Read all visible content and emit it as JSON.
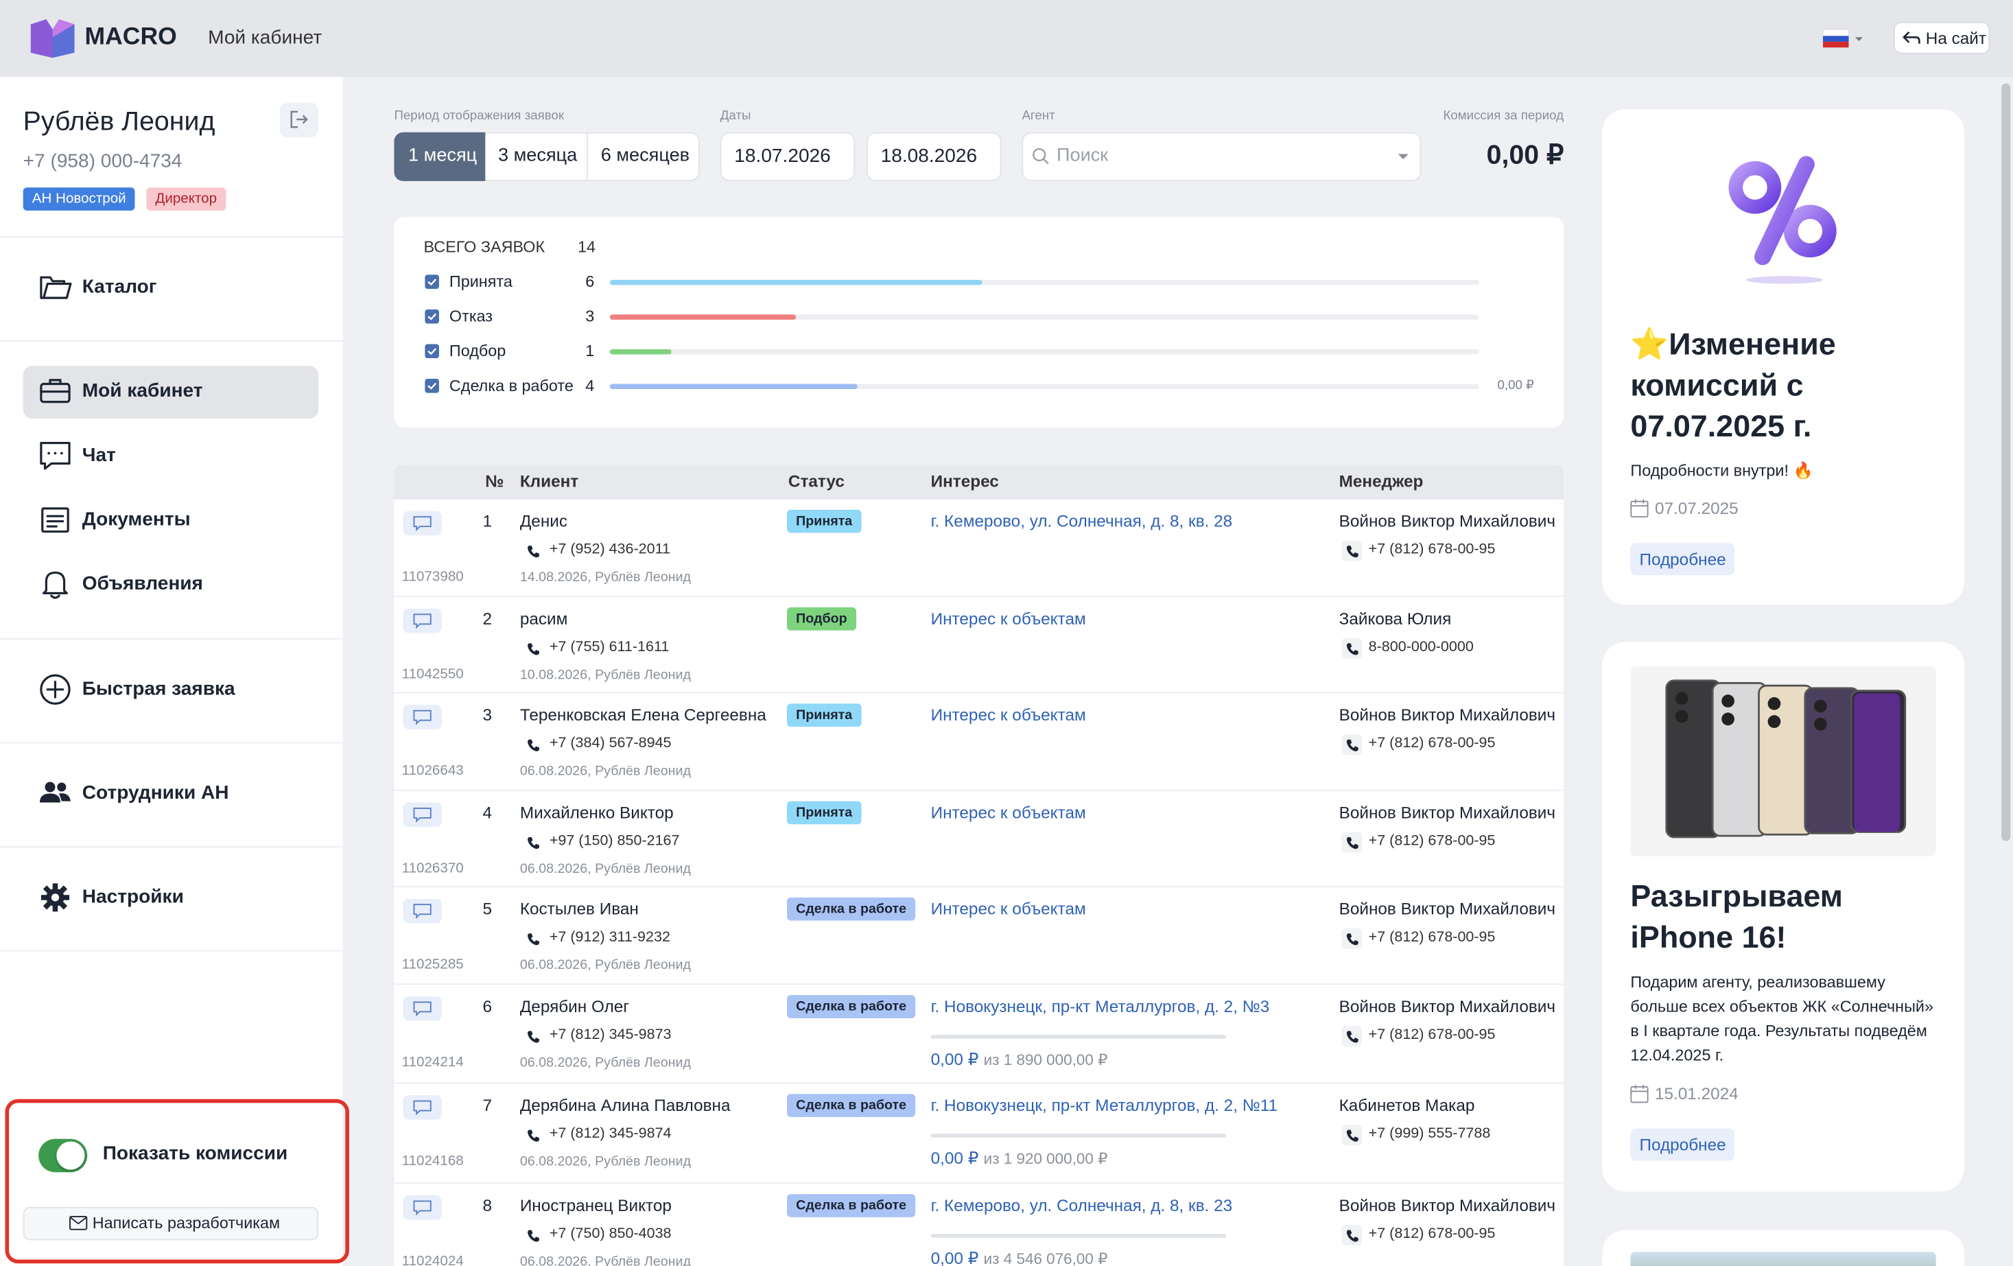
{
  "header": {
    "brand": "MACRO",
    "section": "Мой кабинет",
    "site_button": "На сайт"
  },
  "profile": {
    "name": "Рублёв Леонид",
    "phone": "+7 (958) 000-4734",
    "tags": [
      "АН Новострой",
      "Директор"
    ]
  },
  "nav": [
    "Каталог",
    "Мой кабинет",
    "Чат",
    "Документы",
    "Объявления",
    "Быстрая заявка",
    "Сотрудники АН",
    "Настройки"
  ],
  "sidebar_footer": {
    "toggle": "Показать комиссии",
    "button": "Написать разработчикам"
  },
  "filters": {
    "period_label": "Период отображения заявок",
    "periods": [
      "1 месяц",
      "3 месяца",
      "6 месяцев"
    ],
    "dates_label": "Даты",
    "date_from": "18.07.2026",
    "date_to": "18.08.2026",
    "agent_label": "Агент",
    "agent_placeholder": "Поиск",
    "commission_label": "Комиссия за период",
    "commission": "0,00 ₽"
  },
  "summary": {
    "total_label": "ВСЕГО ЗАЯВОК",
    "total": 14,
    "amount": "0,00 ₽",
    "rows": [
      {
        "label": "Принята",
        "count": 6,
        "color": "#8fd3f5"
      },
      {
        "label": "Отказ",
        "count": 3,
        "color": "#f08080"
      },
      {
        "label": "Подбор",
        "count": 1,
        "color": "#7fd37f"
      },
      {
        "label": "Сделка в работе",
        "count": 4,
        "color": "#9dbbf2"
      }
    ]
  },
  "table": {
    "columns": [
      "№",
      "Клиент",
      "Статус",
      "Интерес",
      "Менеджер"
    ],
    "rows": [
      {
        "id": "11073980",
        "n": "1",
        "client": "Денис",
        "phone": "+7 (952) 436-2011",
        "date": "14.08.2026, Рублёв Леонид",
        "status": "Принята",
        "status_color": "#8fd8f7",
        "interest": "г. Кемерово, ул. Солнечная, д. 8, кв. 28",
        "manager": "Войнов Виктор Михайлович",
        "manager_phone": "+7 (812) 678-00-95"
      },
      {
        "id": "11042550",
        "n": "2",
        "client": "расим",
        "phone": "+7 (755) 611-1611",
        "date": "10.08.2026, Рублёв Леонид",
        "status": "Подбор",
        "status_color": "#7ed37e",
        "interest": "Интерес к объектам",
        "manager": "Зайкова Юлия",
        "manager_phone": "8-800-000-0000"
      },
      {
        "id": "11026643",
        "n": "3",
        "client": "Теренковская Елена Сергеевна",
        "phone": "+7 (384) 567-8945",
        "date": "06.08.2026, Рублёв Леонид",
        "status": "Принята",
        "status_color": "#8fd8f7",
        "interest": "Интерес к объектам",
        "manager": "Войнов Виктор Михайлович",
        "manager_phone": "+7 (812) 678-00-95"
      },
      {
        "id": "11026370",
        "n": "4",
        "client": "Михайленко Виктор",
        "phone": "+97 (150) 850-2167",
        "date": "06.08.2026, Рублёв Леонид",
        "status": "Принята",
        "status_color": "#8fd8f7",
        "interest": "Интерес к объектам",
        "manager": "Войнов Виктор Михайлович",
        "manager_phone": "+7 (812) 678-00-95"
      },
      {
        "id": "11025285",
        "n": "5",
        "client": "Костылев Иван",
        "phone": "+7 (912) 311-9232",
        "date": "06.08.2026, Рублёв Леонид",
        "status": "Сделка в работе",
        "status_color": "#a9c3f5",
        "interest": "Интерес к объектам",
        "manager": "Войнов Виктор Михайлович",
        "manager_phone": "+7 (812) 678-00-95"
      },
      {
        "id": "11024214",
        "n": "6",
        "client": "Дерябин Олег",
        "phone": "+7 (812) 345-9873",
        "date": "06.08.2026, Рублёв Леонид",
        "status": "Сделка в работе",
        "status_color": "#a9c3f5",
        "interest": "г. Новокузнецк, пр-кт Металлургов, д. 2, №3",
        "commission": {
          "paid": "0,00 ₽",
          "of": "из 1 890 000,00 ₽"
        },
        "manager": "Войнов Виктор Михайлович",
        "manager_phone": "+7 (812) 678-00-95"
      },
      {
        "id": "11024168",
        "n": "7",
        "client": "Дерябина Алина Павловна",
        "phone": "+7 (812) 345-9874",
        "date": "06.08.2026, Рублёв Леонид",
        "status": "Сделка в работе",
        "status_color": "#a9c3f5",
        "interest": "г. Новокузнецк, пр-кт Металлургов, д. 2, №11",
        "commission": {
          "paid": "0,00 ₽",
          "of": "из 1 920 000,00 ₽"
        },
        "manager": "Кабинетов Макар",
        "manager_phone": "+7 (999) 555-7788"
      },
      {
        "id": "11024024",
        "n": "8",
        "client": "Иностранец Виктор",
        "phone": "+7 (750) 850-4038",
        "date": "06.08.2026, Рублёв Леонид",
        "status": "Сделка в работе",
        "status_color": "#a9c3f5",
        "interest": "г. Кемерово, ул. Солнечная, д. 8, кв. 23",
        "commission": {
          "paid": "0,00 ₽",
          "of": "из 4 546 076,00 ₽"
        },
        "manager": "Войнов Виктор Михайлович",
        "manager_phone": "+7 (812) 678-00-95"
      }
    ]
  },
  "promos": [
    {
      "title": "⭐Изменение комиссий с 07.07.2025 г.",
      "text": "Подробности внутри! 🔥",
      "date": "07.07.2025",
      "button": "Подробнее"
    },
    {
      "title": "Разыгрываем iPhone 16!",
      "text": "Подарим агенту, реализовавшему больше всех объектов ЖК «Солнечный» в I квартале года. Результаты подведём 12.04.2025 г.",
      "date": "15.01.2024",
      "button": "Подробнее"
    }
  ]
}
